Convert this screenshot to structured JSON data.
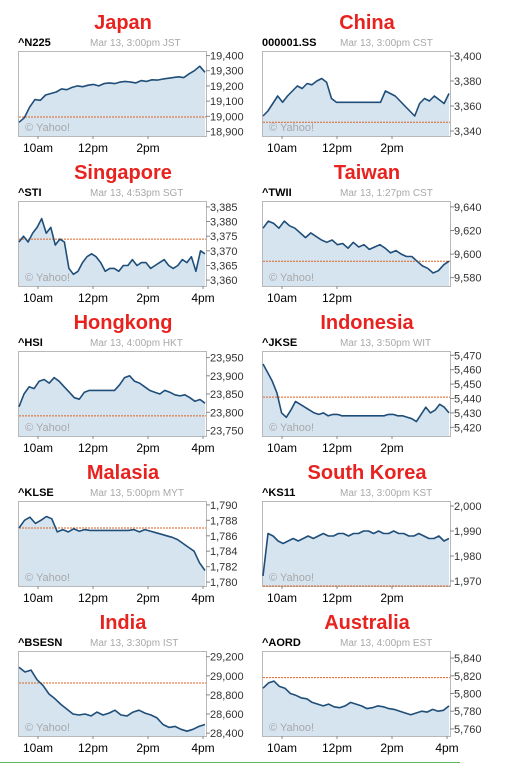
{
  "colors": {
    "country_title": "#e8231f",
    "line": "#1f4e79",
    "fill": "#d6e4f0",
    "reference_line": "#e0621f",
    "frame": "#b8b8b8",
    "label_gray": "#a8a8a8"
  },
  "chart_data": [
    {
      "type": "area",
      "country": "Japan",
      "ticker": "^N225",
      "date": "Mar 13, 3:00pm JST",
      "watermark": "© Yahoo!",
      "x_ticks": [
        "10am",
        "12pm",
        "2pm"
      ],
      "y_ticks": [
        "19,400",
        "19,300",
        "19,200",
        "19,100",
        "19,000",
        "18,900"
      ],
      "ylim": [
        18870,
        19430
      ],
      "reference": 18995,
      "series": [
        {
          "values": [
            18960,
            18990,
            19060,
            19110,
            19105,
            19140,
            19150,
            19160,
            19180,
            19175,
            19190,
            19200,
            19195,
            19205,
            19210,
            19200,
            19215,
            19220,
            19215,
            19225,
            19230,
            19225,
            19220,
            19235,
            19230,
            19240,
            19238,
            19245,
            19250,
            19255,
            19260,
            19255,
            19280,
            19300,
            19330,
            19290
          ]
        }
      ]
    },
    {
      "type": "area",
      "country": "China",
      "ticker": "000001.SS",
      "date": "Mar 13, 3:00pm CST",
      "watermark": "© Yahoo!",
      "x_ticks": [
        "10am",
        "12pm",
        "2pm"
      ],
      "y_ticks": [
        "3,400",
        "3,380",
        "3,360",
        "3,340"
      ],
      "ylim": [
        3336,
        3404
      ],
      "reference": 3347,
      "series": [
        {
          "values": [
            3352,
            3356,
            3362,
            3368,
            3363,
            3368,
            3372,
            3376,
            3374,
            3378,
            3377,
            3380,
            3382,
            3379,
            3366,
            3363,
            3363,
            3363,
            3363,
            3363,
            3363,
            3363,
            3363,
            3363,
            3363,
            3372,
            3370,
            3368,
            3364,
            3360,
            3356,
            3352,
            3362,
            3366,
            3364,
            3368,
            3365,
            3362,
            3370
          ]
        }
      ]
    },
    {
      "type": "area",
      "country": "Singapore",
      "ticker": "^STI",
      "date": "Mar 13, 4:53pm SGT",
      "watermark": "© Yahoo!",
      "x_ticks": [
        "10am",
        "12pm",
        "2pm",
        "4pm"
      ],
      "y_ticks": [
        "3,385",
        "3,380",
        "3,375",
        "3,370",
        "3,365",
        "3,360"
      ],
      "ylim": [
        3358,
        3387
      ],
      "reference": 3374,
      "series": [
        {
          "values": [
            3373,
            3375,
            3373,
            3376,
            3378,
            3381,
            3376,
            3378,
            3372,
            3374,
            3373,
            3364,
            3362,
            3363,
            3366,
            3368,
            3369,
            3368,
            3366,
            3363,
            3364,
            3364,
            3363,
            3365,
            3365,
            3367,
            3365,
            3366,
            3366,
            3364,
            3365,
            3366,
            3367,
            3365,
            3364,
            3365,
            3367,
            3366,
            3368,
            3363,
            3370,
            3369
          ]
        }
      ]
    },
    {
      "type": "area",
      "country": "Taiwan",
      "ticker": "^TWII",
      "date": "Mar 13, 1:27pm CST",
      "watermark": "© Yahoo!",
      "x_ticks": [
        "10am",
        "12pm"
      ],
      "y_ticks": [
        "9,640",
        "9,620",
        "9,600",
        "9,580"
      ],
      "ylim": [
        9573,
        9645
      ],
      "reference": 9594,
      "series": [
        {
          "values": [
            9622,
            9628,
            9626,
            9622,
            9628,
            9624,
            9622,
            9618,
            9614,
            9618,
            9615,
            9612,
            9610,
            9612,
            9608,
            9609,
            9605,
            9610,
            9606,
            9608,
            9604,
            9606,
            9608,
            9605,
            9601,
            9603,
            9600,
            9598,
            9598,
            9594,
            9590,
            9588,
            9584,
            9586,
            9591,
            9594
          ]
        }
      ]
    },
    {
      "type": "area",
      "country": "Hongkong",
      "ticker": "^HSI",
      "date": "Mar 13, 4:00pm HKT",
      "watermark": "© Yahoo!",
      "x_ticks": [
        "10am",
        "12pm",
        "2pm",
        "4pm"
      ],
      "y_ticks": [
        "23,950",
        "23,900",
        "23,850",
        "23,800",
        "23,750"
      ],
      "ylim": [
        23735,
        23968
      ],
      "reference": 23790,
      "series": [
        {
          "values": [
            23815,
            23850,
            23870,
            23865,
            23885,
            23890,
            23880,
            23895,
            23885,
            23870,
            23855,
            23840,
            23836,
            23855,
            23860,
            23860,
            23860,
            23860,
            23860,
            23860,
            23875,
            23895,
            23900,
            23885,
            23880,
            23870,
            23860,
            23855,
            23850,
            23860,
            23855,
            23848,
            23845,
            23848,
            23840,
            23830,
            23835,
            23825
          ]
        }
      ]
    },
    {
      "type": "area",
      "country": "Indonesia",
      "ticker": "^JKSE",
      "date": "Mar 13, 3:50pm WIT",
      "watermark": "© Yahoo!",
      "x_ticks": [
        "10am",
        "12pm",
        "2pm"
      ],
      "y_ticks": [
        "5,470",
        "5,460",
        "5,450",
        "5,440",
        "5,430",
        "5,420"
      ],
      "ylim": [
        5414,
        5473
      ],
      "reference": 5441,
      "series": [
        {
          "values": [
            5464,
            5458,
            5452,
            5444,
            5430,
            5427,
            5432,
            5438,
            5436,
            5434,
            5432,
            5430,
            5429,
            5430,
            5428,
            5429,
            5429,
            5428,
            5428,
            5428,
            5428,
            5428,
            5428,
            5428,
            5428,
            5428,
            5428,
            5429,
            5429,
            5428,
            5428,
            5427,
            5426,
            5424,
            5429,
            5434,
            5430,
            5432,
            5436,
            5434,
            5430
          ]
        }
      ]
    },
    {
      "type": "area",
      "country": "Malasia",
      "ticker": "^KLSE",
      "date": "Mar 13, 5:00pm MYT",
      "watermark": "© Yahoo!",
      "x_ticks": [
        "10am",
        "12pm",
        "2pm",
        "4pm"
      ],
      "y_ticks": [
        "1,790",
        "1,788",
        "1,786",
        "1,784",
        "1,782",
        "1,780"
      ],
      "ylim": [
        1779.5,
        1790.5
      ],
      "reference": 1787,
      "series": [
        {
          "values": [
            1787,
            1788,
            1788.4,
            1787.6,
            1788,
            1788.5,
            1788.2,
            1786.5,
            1786.8,
            1786.5,
            1786.9,
            1786.6,
            1786.8,
            1786.7,
            1786.7,
            1786.7,
            1786.7,
            1786.7,
            1786.7,
            1786.7,
            1786.7,
            1786.8,
            1786.5,
            1786.8,
            1786.6,
            1786.4,
            1786.2,
            1786,
            1785.8,
            1785.5,
            1785,
            1784.5,
            1784,
            1782.5,
            1781.5
          ]
        }
      ]
    },
    {
      "type": "area",
      "country": "South Korea",
      "ticker": "^KS11",
      "date": "Mar 13, 3:00pm KST",
      "watermark": "© Yahoo!",
      "x_ticks": [
        "10am",
        "12pm",
        "2pm"
      ],
      "y_ticks": [
        "2,000",
        "1,990",
        "1,980",
        "1,970"
      ],
      "ylim": [
        1968,
        2002
      ],
      "reference": 1968,
      "series": [
        {
          "values": [
            1972,
            1989,
            1988,
            1986,
            1985,
            1986,
            1987,
            1986,
            1987,
            1988,
            1987,
            1988,
            1989,
            1988,
            1988,
            1989,
            1989,
            1988,
            1989,
            1989,
            1990,
            1990,
            1989,
            1990,
            1989,
            1989,
            1990,
            1989,
            1989,
            1988,
            1988,
            1989,
            1988,
            1987,
            1987,
            1988,
            1986,
            1987
          ]
        }
      ]
    },
    {
      "type": "area",
      "country": "India",
      "ticker": "^BSESN",
      "date": "Mar 13, 3:30pm IST",
      "watermark": "© Yahoo!",
      "x_ticks": [
        "10am",
        "12pm",
        "2pm",
        "4pm"
      ],
      "y_ticks": [
        "29,200",
        "29,000",
        "28,800",
        "28,600",
        "28,400"
      ],
      "ylim": [
        28370,
        29260
      ],
      "reference": 28925,
      "series": [
        {
          "values": [
            29090,
            29040,
            29060,
            28960,
            28900,
            28810,
            28760,
            28700,
            28650,
            28600,
            28590,
            28600,
            28580,
            28620,
            28590,
            28610,
            28640,
            28590,
            28580,
            28620,
            28640,
            28610,
            28590,
            28560,
            28490,
            28460,
            28470,
            28440,
            28420,
            28440,
            28470,
            28490
          ]
        }
      ]
    },
    {
      "type": "area",
      "country": "Australia",
      "ticker": "^AORD",
      "date": "Mar 13, 4:00pm EST",
      "watermark": "© Yahoo!",
      "x_ticks": [
        "10am",
        "12pm",
        "2pm",
        "4pm"
      ],
      "y_ticks": [
        "5,840",
        "5,820",
        "5,800",
        "5,780",
        "5,760"
      ],
      "ylim": [
        5752,
        5848
      ],
      "reference": 5818,
      "series": [
        {
          "values": [
            5806,
            5812,
            5814,
            5808,
            5806,
            5800,
            5798,
            5795,
            5794,
            5790,
            5788,
            5786,
            5788,
            5785,
            5784,
            5786,
            5790,
            5788,
            5786,
            5783,
            5784,
            5786,
            5785,
            5783,
            5782,
            5780,
            5778,
            5776,
            5778,
            5780,
            5779,
            5782,
            5780,
            5781,
            5786
          ]
        }
      ]
    }
  ]
}
